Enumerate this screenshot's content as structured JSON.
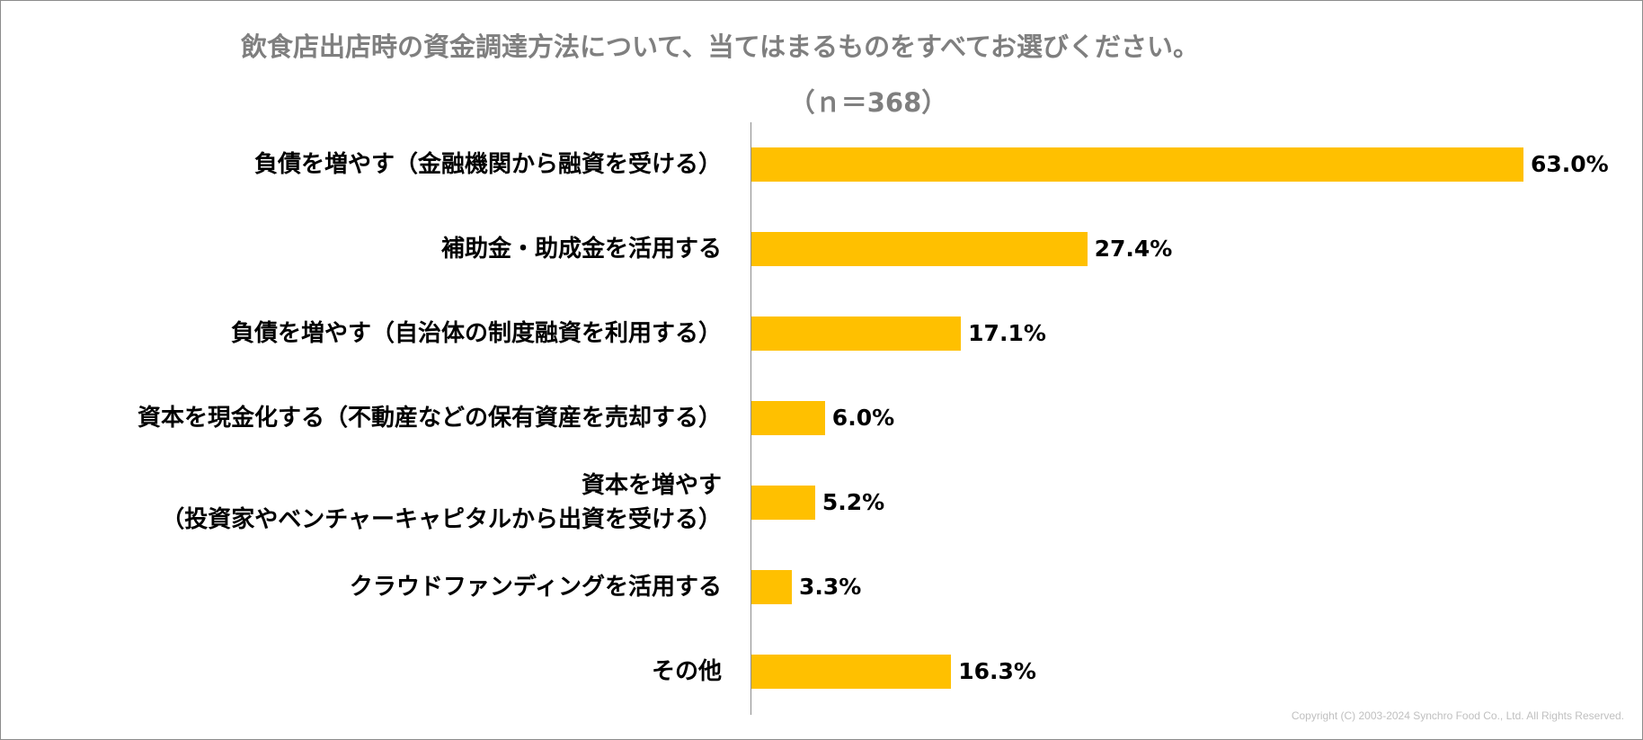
{
  "chart_data": {
    "type": "bar",
    "orientation": "horizontal",
    "title": "飲食店出店時の資金調達方法について、当てはまるものをすべてお選びください。",
    "subtitle": "（ｎ＝368）",
    "categories": [
      [
        "負債を増やす（金融機関から融資を受ける）"
      ],
      [
        "補助金・助成金を活用する"
      ],
      [
        "負債を増やす（自治体の制度融資を利用する）"
      ],
      [
        "資本を現金化する（不動産などの保有資産を売却する）"
      ],
      [
        "資本を増やす",
        "（投資家やベンチャーキャピタルから出資を受ける）"
      ],
      [
        "クラウドファンディングを活用する"
      ],
      [
        "その他"
      ]
    ],
    "values": [
      63.0,
      27.4,
      17.1,
      6.0,
      5.2,
      3.3,
      16.3
    ],
    "value_labels": [
      "63.0%",
      "27.4%",
      "17.1%",
      "6.0%",
      "5.2%",
      "3.3%",
      "16.3%"
    ],
    "xlim": [
      0,
      63.0
    ],
    "grid": false,
    "bar_color": "#ffc000"
  },
  "footer": {
    "copyright": "Copyright (C) 2003-2024   Synchro Food Co., Ltd. All Rights Reserved."
  }
}
